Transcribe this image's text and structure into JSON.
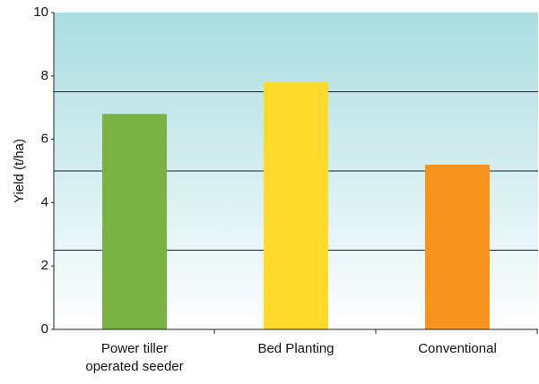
{
  "chart_data": {
    "type": "bar",
    "y_label": "Yield (t/ha)",
    "categories": [
      "Power tiller\noperated seeder",
      "Bed Planting",
      "Conventional"
    ],
    "values": [
      6.8,
      7.8,
      5.2
    ],
    "colors": [
      "#79b143",
      "#fdda2b",
      "#f7941e"
    ],
    "ylim": [
      0,
      10
    ],
    "yticks": [
      0,
      2,
      4,
      6,
      8,
      10
    ],
    "grid_lines": [
      2.5,
      5,
      7.5
    ],
    "background": [
      "#a9dde1",
      "#ffffff"
    ]
  }
}
